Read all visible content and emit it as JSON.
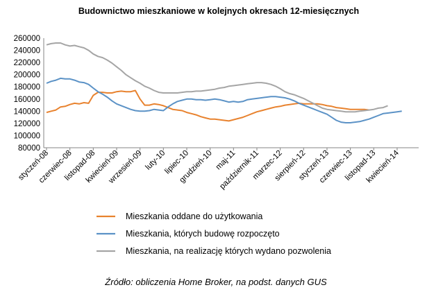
{
  "chart_data": {
    "type": "line",
    "title": "Budownictwo mieszkaniowe w kolejnych okresach 12-miesięcznych",
    "source": "Źródło: obliczenia Home Broker, na podst. danych GUS",
    "ylim": [
      80000,
      260000
    ],
    "yticks": [
      "80000",
      "100000",
      "120000",
      "140000",
      "160000",
      "180000",
      "200000",
      "220000",
      "240000",
      "260000"
    ],
    "grid": false,
    "legend_position": "bottom",
    "x_tick_labels": [
      "styczeń-08",
      "czerwiec-08",
      "listopad-08",
      "kwiecień-09",
      "wrzesień-09",
      "luty-10",
      "lipiec-10",
      "grudzień-10",
      "maj-11",
      "październik-11",
      "marzec-12",
      "sierpień-12",
      "styczeń-13",
      "czerwiec-13",
      "listopad-13",
      "kwiecień-14"
    ],
    "series": [
      {
        "name": "Mieszkania oddane do użytkowania",
        "color": "#e8822e",
        "values": [
          138000,
          140000,
          142000,
          147000,
          148000,
          151000,
          153000,
          152000,
          154000,
          153000,
          166000,
          171000,
          171000,
          170000,
          170000,
          172000,
          173000,
          172000,
          172000,
          174000,
          160000,
          150000,
          150000,
          152000,
          151000,
          149000,
          146000,
          143000,
          142000,
          141000,
          138000,
          136000,
          134000,
          131000,
          129000,
          127000,
          127000,
          126000,
          125000,
          124000,
          126000,
          128000,
          130000,
          133000,
          136000,
          139000,
          141000,
          143000,
          145000,
          147000,
          148000,
          150000,
          151000,
          152000,
          153000,
          152000,
          152000,
          152000,
          152000,
          151000,
          149000,
          148000,
          146000,
          145000,
          144000,
          143000,
          143000,
          143000,
          143000,
          142000
        ]
      },
      {
        "name": "Mieszkania, których budowę rozpoczęto",
        "color": "#5b92c6",
        "values": [
          186000,
          189000,
          191000,
          194000,
          193000,
          193000,
          191000,
          188000,
          187000,
          184000,
          178000,
          172000,
          168000,
          163000,
          157000,
          152000,
          149000,
          146000,
          143000,
          141000,
          140000,
          140000,
          141000,
          143000,
          142000,
          141000,
          147000,
          152000,
          156000,
          158000,
          160000,
          160000,
          159000,
          159000,
          158000,
          159000,
          160000,
          159000,
          157000,
          155000,
          156000,
          155000,
          156000,
          159000,
          160000,
          161000,
          162000,
          163000,
          164000,
          164000,
          163000,
          162000,
          160000,
          157000,
          153000,
          150000,
          147000,
          144000,
          141000,
          138000,
          135000,
          130000,
          125000,
          122000,
          121000,
          121000,
          122000,
          123000,
          125000,
          127000,
          130000,
          133000,
          136000,
          137000,
          138000,
          139000,
          140000
        ]
      },
      {
        "name": "Mieszkania, na realizację których wydano pozwolenia",
        "color": "#a5a5a5",
        "values": [
          249000,
          251000,
          252000,
          252000,
          249000,
          247000,
          248000,
          246000,
          244000,
          240000,
          234000,
          230000,
          228000,
          224000,
          219000,
          213000,
          207000,
          200000,
          195000,
          190000,
          186000,
          181000,
          178000,
          174000,
          171000,
          170000,
          170000,
          170000,
          170000,
          171000,
          172000,
          172000,
          173000,
          173000,
          174000,
          175000,
          176000,
          178000,
          179000,
          181000,
          182000,
          183000,
          184000,
          185000,
          186000,
          187000,
          187000,
          186000,
          184000,
          181000,
          177000,
          172000,
          169000,
          167000,
          164000,
          161000,
          157000,
          153000,
          149000,
          145000,
          143000,
          142000,
          141000,
          140000,
          139000,
          139000,
          139000,
          140000,
          141000,
          142000,
          143000,
          145000,
          146000,
          149000
        ]
      }
    ]
  }
}
